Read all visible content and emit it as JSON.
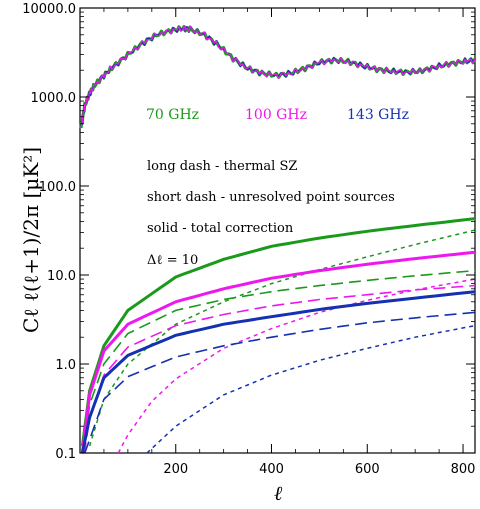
{
  "chart_data": {
    "type": "line",
    "title": "",
    "xlabel": "ℓ",
    "ylabel": "Cℓ ℓ(ℓ+1)/2π [μK²]",
    "xlim": [
      0,
      825
    ],
    "ylim": [
      0.1,
      10000
    ],
    "yscale": "log",
    "grid": false,
    "x_ticks": [
      200,
      400,
      600,
      800
    ],
    "x_tick_labels": [
      "200",
      "400",
      "600",
      "800"
    ],
    "y_ticks": [
      0.1,
      1,
      10,
      100,
      1000,
      10000
    ],
    "y_tick_labels": [
      "0.1",
      "1.0",
      "10.0",
      "100.0",
      "1000.0",
      "10000.0"
    ],
    "legend": [
      {
        "label": "70 GHz",
        "color": "#1a9a1a"
      },
      {
        "label": "100 GHz",
        "color": "#ee18ee"
      },
      {
        "label": "143 GHz",
        "color": "#1530b0"
      }
    ],
    "annotations": [
      "long dash - thermal SZ",
      "short dash - unresolved point sources",
      "solid - total correction",
      "Δℓ = 10"
    ],
    "colors": {
      "ghz70": "#1a9a1a",
      "ghz100": "#ee18ee",
      "ghz143": "#1530b0",
      "cmb_dark": "#1a6a3a"
    },
    "series": [
      {
        "freq": "70 GHz",
        "style": "solid",
        "color": "#1a9a1a",
        "x": [
          5,
          20,
          50,
          100,
          200,
          300,
          400,
          500,
          600,
          700,
          825
        ],
        "values": [
          0.12,
          0.5,
          1.6,
          4.0,
          9.5,
          15,
          21,
          26,
          31,
          36,
          43
        ]
      },
      {
        "freq": "70 GHz",
        "style": "long-dash",
        "color": "#1a9a1a",
        "x": [
          5,
          20,
          50,
          100,
          200,
          300,
          400,
          500,
          600,
          700,
          825
        ],
        "values": [
          0.08,
          0.35,
          1.0,
          2.2,
          4.0,
          5.3,
          6.5,
          7.6,
          8.7,
          9.8,
          11.2
        ]
      },
      {
        "freq": "70 GHz",
        "style": "short-dash",
        "color": "#1a9a1a",
        "x": [
          20,
          50,
          100,
          200,
          300,
          400,
          500,
          600,
          700,
          825
        ],
        "values": [
          0.12,
          0.4,
          1.0,
          2.8,
          5.0,
          8.0,
          11.5,
          16,
          22,
          32
        ]
      },
      {
        "freq": "100 GHz",
        "style": "solid",
        "color": "#ee18ee",
        "x": [
          5,
          20,
          50,
          100,
          200,
          300,
          400,
          500,
          600,
          700,
          825
        ],
        "values": [
          0.1,
          0.45,
          1.4,
          2.8,
          5.0,
          7.0,
          9.2,
          11.2,
          13.2,
          15.3,
          18
        ]
      },
      {
        "freq": "100 GHz",
        "style": "long-dash",
        "color": "#ee18ee",
        "x": [
          5,
          20,
          50,
          100,
          200,
          300,
          400,
          500,
          600,
          700,
          825
        ],
        "values": [
          0.07,
          0.25,
          0.75,
          1.55,
          2.7,
          3.6,
          4.5,
          5.3,
          6.0,
          6.8,
          7.6
        ]
      },
      {
        "freq": "100 GHz",
        "style": "short-dash",
        "color": "#ee18ee",
        "x": [
          80,
          100,
          150,
          200,
          300,
          400,
          500,
          600,
          700,
          825
        ],
        "values": [
          0.1,
          0.16,
          0.38,
          0.68,
          1.5,
          2.5,
          3.8,
          5.2,
          6.8,
          9.0
        ]
      },
      {
        "freq": "143 GHz",
        "style": "solid",
        "color": "#1530b0",
        "x": [
          5,
          20,
          50,
          100,
          200,
          300,
          400,
          500,
          600,
          700,
          825
        ],
        "values": [
          0.1,
          0.25,
          0.7,
          1.25,
          2.1,
          2.8,
          3.4,
          4.1,
          4.8,
          5.5,
          6.5
        ]
      },
      {
        "freq": "143 GHz",
        "style": "long-dash",
        "color": "#1530b0",
        "x": [
          10,
          50,
          100,
          200,
          300,
          400,
          500,
          600,
          700,
          825
        ],
        "values": [
          0.1,
          0.4,
          0.72,
          1.2,
          1.6,
          2.0,
          2.45,
          2.9,
          3.3,
          3.8
        ]
      },
      {
        "freq": "143 GHz",
        "style": "short-dash",
        "color": "#1530b0",
        "x": [
          140,
          200,
          300,
          400,
          500,
          600,
          700,
          825
        ],
        "values": [
          0.1,
          0.2,
          0.45,
          0.75,
          1.1,
          1.5,
          2.0,
          2.7
        ]
      },
      {
        "freq": "all",
        "style": "cmb-spectrum",
        "color": "#1a6a3a",
        "x": [
          2,
          10,
          20,
          30,
          50,
          70,
          100,
          130,
          160,
          190,
          215,
          230,
          260,
          290,
          320,
          350,
          380,
          410,
          440,
          470,
          500,
          530,
          560,
          590,
          620,
          650,
          680,
          710,
          740,
          770,
          800,
          825
        ],
        "values": [
          450,
          800,
          1100,
          1350,
          1750,
          2200,
          3000,
          4000,
          5000,
          5600,
          5900,
          5800,
          5000,
          3800,
          2700,
          2100,
          1850,
          1750,
          1850,
          2100,
          2450,
          2600,
          2500,
          2250,
          2050,
          1950,
          1900,
          1950,
          2150,
          2350,
          2500,
          2600
        ]
      }
    ]
  }
}
